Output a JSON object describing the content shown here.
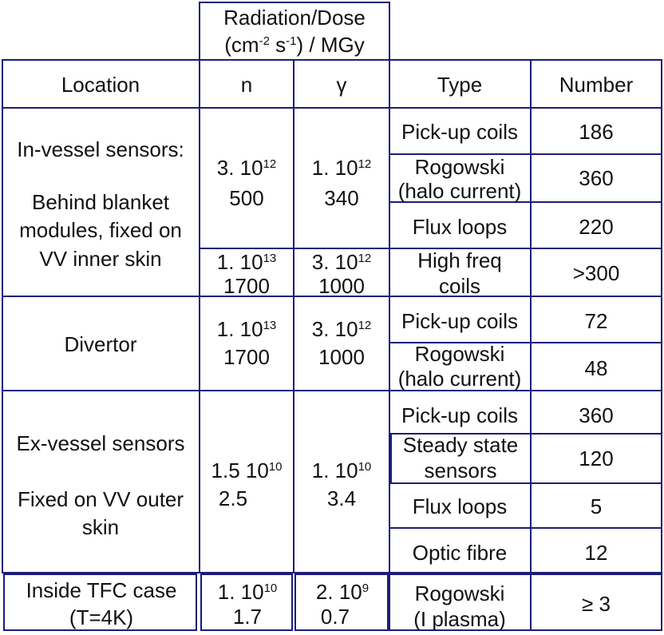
{
  "header": {
    "radiation_line1": "Radiation/Dose",
    "radiation_line2_a": "(cm",
    "radiation_line2_sup1": "-2",
    "radiation_line2_b": " s",
    "radiation_line2_sup2": "-1",
    "radiation_line2_c": ") / MGy",
    "col_location": "Location",
    "col_n": "n",
    "col_gamma": "γ",
    "col_type": "Type",
    "col_number": "Number"
  },
  "groups": {
    "invessel": {
      "loc1": "In-vessel sensors:",
      "loc2": "Behind blanket",
      "loc3": "modules, fixed on",
      "loc4": "VV inner skin",
      "n1_base": "3. 10",
      "n1_exp": "12",
      "n1_dose": "500",
      "g1_base": "1. 10",
      "g1_exp": "12",
      "g1_dose": "340",
      "n2_base": "1. 10",
      "n2_exp": "13",
      "n2_dose": "1700",
      "g2_base": "3. 10",
      "g2_exp": "12",
      "g2_dose": "1000",
      "rows": [
        {
          "type": "Pick-up coils",
          "number": "186"
        },
        {
          "type_line1": "Rogowski",
          "type_line2": "(halo current)",
          "number": "360"
        },
        {
          "type": "Flux loops",
          "number": "220"
        },
        {
          "type_line1": "High freq",
          "type_line2": "coils",
          "number": ">300"
        }
      ]
    },
    "divertor": {
      "loc1": "Divertor",
      "n_base": "1. 10",
      "n_exp": "13",
      "n_dose": "1700",
      "g_base": "3. 10",
      "g_exp": "12",
      "g_dose": "1000",
      "rows": [
        {
          "type": "Pick-up coils",
          "number": "72"
        },
        {
          "type_line1": "Rogowski",
          "type_line2": "(halo current)",
          "number": "48"
        }
      ]
    },
    "exvessel": {
      "loc1": "Ex-vessel sensors",
      "loc2": "Fixed on VV outer",
      "loc3": "skin",
      "n_base": "1.5 10",
      "n_exp": "10",
      "n_dose": "2.5",
      "g_base": "1. 10",
      "g_exp": "10",
      "g_dose": "3.4",
      "rows": [
        {
          "type": "Pick-up coils",
          "number": "360"
        },
        {
          "type_line1": "Steady state",
          "type_line2": "sensors",
          "number": "120"
        },
        {
          "type": "Flux loops",
          "number": "5"
        },
        {
          "type": "Optic fibre",
          "number": "12"
        }
      ]
    },
    "tfc": {
      "loc1": "Inside TFC case",
      "loc2": "(T=4K)",
      "n_base": "1. 10",
      "n_exp": "10",
      "n_dose": "1.7",
      "g_base": "2. 10",
      "g_exp": "9",
      "g_dose": "0.7",
      "type_line1": "Rogowski",
      "type_line2": "(I plasma)",
      "number": "≥ 3"
    }
  }
}
